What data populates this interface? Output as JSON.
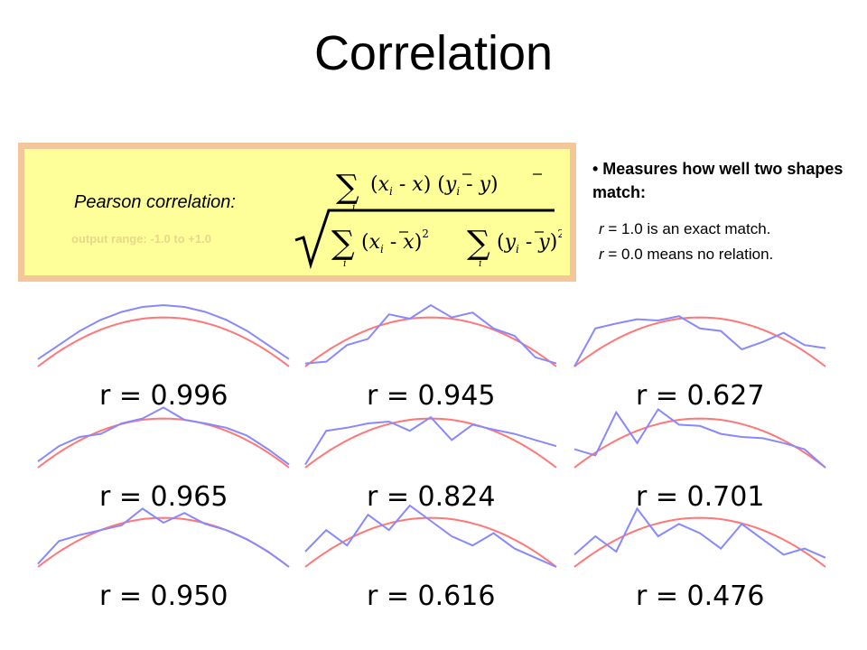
{
  "title": "Correlation",
  "formula_box": {
    "label": "Pearson correlation:",
    "range": "output range: -1.0 to +1.0",
    "accent_fill": "#ffff99",
    "accent_border": "#f4c79a"
  },
  "bullet": {
    "text": "• Measures how well two shapes match:",
    "line1_var": "r",
    "line1_rest": " = 1.0 is an exact match.",
    "line2_var": "r",
    "line2_rest": " = 0.0 means no relation."
  },
  "chart_data": {
    "type": "line",
    "panels": [
      {
        "label": "r = 0.996",
        "reference": "parabola",
        "values": [
          0.12,
          0.35,
          0.58,
          0.76,
          0.89,
          0.97,
          1.0,
          0.97,
          0.89,
          0.76,
          0.58,
          0.35,
          0.12
        ]
      },
      {
        "label": "r = 0.945",
        "reference": "parabola",
        "values": [
          0.05,
          0.08,
          0.35,
          0.45,
          0.85,
          0.78,
          1.0,
          0.8,
          0.88,
          0.62,
          0.5,
          0.15,
          0.05
        ]
      },
      {
        "label": "r = 0.627",
        "reference": "parabola",
        "values": [
          0.0,
          0.62,
          0.7,
          0.77,
          0.75,
          0.82,
          0.62,
          0.58,
          0.28,
          0.4,
          0.55,
          0.35,
          0.3
        ]
      },
      {
        "label": "r = 0.965",
        "reference": "parabola",
        "values": [
          0.1,
          0.35,
          0.5,
          0.55,
          0.72,
          0.8,
          0.98,
          0.78,
          0.72,
          0.65,
          0.52,
          0.3,
          0.05
        ]
      },
      {
        "label": "r = 0.824",
        "reference": "parabola",
        "values": [
          0.05,
          0.6,
          0.65,
          0.72,
          0.75,
          0.6,
          0.82,
          0.45,
          0.7,
          0.62,
          0.55,
          0.45,
          0.35
        ]
      },
      {
        "label": "r = 0.701",
        "reference": "parabola",
        "values": [
          0.3,
          0.2,
          0.9,
          0.4,
          0.95,
          0.7,
          0.68,
          0.55,
          0.5,
          0.48,
          0.4,
          0.3,
          0.0
        ]
      },
      {
        "label": "r = 0.950",
        "reference": "parabola",
        "values": [
          0.05,
          0.42,
          0.52,
          0.6,
          0.68,
          0.95,
          0.72,
          0.88,
          0.7,
          0.6,
          0.45,
          0.25,
          0.0
        ]
      },
      {
        "label": "r = 0.616",
        "reference": "parabola",
        "values": [
          0.25,
          0.6,
          0.35,
          0.85,
          0.6,
          1.0,
          0.75,
          0.5,
          0.35,
          0.55,
          0.3,
          0.15,
          0.0
        ]
      },
      {
        "label": "r = 0.476",
        "reference": "parabola",
        "values": [
          0.2,
          0.5,
          0.25,
          0.95,
          0.5,
          0.7,
          0.55,
          0.3,
          0.7,
          0.45,
          0.2,
          0.3,
          0.15
        ]
      }
    ],
    "colors": {
      "data": "#8888ff",
      "reference": "#ff7777"
    }
  }
}
